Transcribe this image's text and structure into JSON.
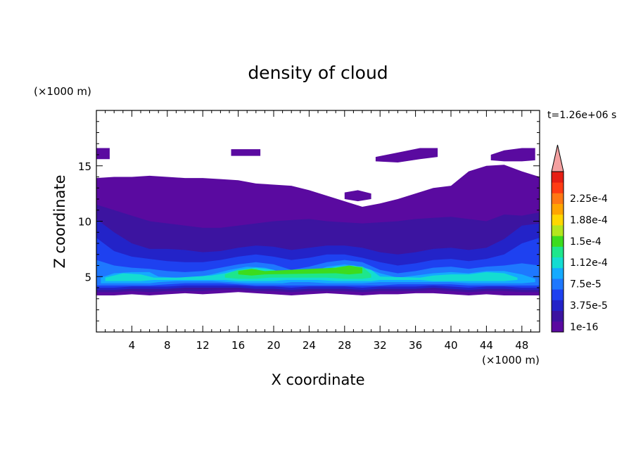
{
  "chart_data": {
    "type": "heatmap",
    "title": "density of cloud",
    "xlabel": "X coordinate",
    "ylabel": "Z coordinate",
    "x_unit": "(×1000 m)",
    "y_unit": "(×1000 m)",
    "time_label": "t=1.26e+06 s",
    "xlim": [
      0,
      50
    ],
    "ylim": [
      0,
      20
    ],
    "x_ticks": [
      4,
      8,
      12,
      16,
      20,
      24,
      28,
      32,
      36,
      40,
      44,
      48
    ],
    "y_ticks": [
      5,
      10,
      15
    ],
    "grid": false,
    "colorbar": {
      "levels": [
        1e-16,
        1.875e-05,
        3.75e-05,
        5.625e-05,
        7.5e-05,
        9.375e-05,
        0.0001125,
        0.00013125,
        0.00015,
        0.00016875,
        0.0001875,
        0.00020625,
        0.000225,
        0.00024375,
        0.0002625
      ],
      "labels": [
        "1e-16",
        "3.75e-5",
        "7.5e-5",
        "1.12e-4",
        "1.5e-4",
        "1.88e-4",
        "2.25e-4"
      ],
      "label_indices": [
        0,
        2,
        4,
        6,
        8,
        10,
        12
      ],
      "colors": [
        "#5a0aa0",
        "#3c14a0",
        "#2323c8",
        "#1e41f0",
        "#1e78ff",
        "#14aaff",
        "#14dcd2",
        "#1ee68c",
        "#3cdc1e",
        "#b4e61e",
        "#ffd700",
        "#ffa500",
        "#ff7814",
        "#ff3c14",
        "#e61e14"
      ],
      "extend_color": "#f4a0a0",
      "placement": "right"
    },
    "cloud_layers": [
      {
        "level": 0,
        "x": [
          0,
          2,
          4,
          6,
          8,
          10,
          12,
          14,
          16,
          18,
          20,
          22,
          24,
          26,
          28,
          30,
          32,
          34,
          36,
          38,
          40,
          42,
          44,
          46,
          48,
          50
        ],
        "bottom": [
          3.3,
          3.3,
          3.4,
          3.3,
          3.4,
          3.5,
          3.4,
          3.5,
          3.6,
          3.5,
          3.4,
          3.3,
          3.4,
          3.5,
          3.4,
          3.3,
          3.4,
          3.4,
          3.5,
          3.5,
          3.4,
          3.3,
          3.4,
          3.3,
          3.3,
          3.3
        ],
        "top": [
          13.9,
          14.0,
          14.0,
          14.1,
          14.0,
          13.9,
          13.9,
          13.8,
          13.7,
          13.4,
          13.3,
          13.2,
          12.8,
          12.3,
          11.8,
          11.3,
          11.6,
          12.0,
          12.5,
          13.0,
          13.2,
          14.5,
          15.0,
          15.1,
          14.5,
          14.0
        ]
      },
      {
        "level": 1,
        "x": [
          0,
          2,
          4,
          6,
          8,
          10,
          12,
          14,
          16,
          18,
          20,
          22,
          24,
          26,
          28,
          30,
          32,
          34,
          36,
          38,
          40,
          42,
          44,
          46,
          48,
          50
        ],
        "bottom": [
          3.6,
          3.6,
          3.7,
          3.6,
          3.7,
          3.7,
          3.7,
          3.8,
          3.8,
          3.7,
          3.7,
          3.6,
          3.7,
          3.7,
          3.7,
          3.6,
          3.7,
          3.7,
          3.7,
          3.8,
          3.7,
          3.6,
          3.7,
          3.7,
          3.6,
          3.6
        ],
        "top": [
          11.5,
          11.0,
          10.5,
          10.0,
          9.8,
          9.6,
          9.4,
          9.4,
          9.6,
          9.8,
          10.0,
          10.1,
          10.2,
          10.0,
          9.9,
          9.8,
          9.9,
          10.0,
          10.2,
          10.3,
          10.4,
          10.2,
          10.0,
          10.6,
          10.5,
          10.8
        ]
      },
      {
        "level": 2,
        "x": [
          0,
          2,
          4,
          6,
          8,
          10,
          12,
          14,
          16,
          18,
          20,
          22,
          24,
          26,
          28,
          30,
          32,
          34,
          36,
          38,
          40,
          42,
          44,
          46,
          48,
          50
        ],
        "bottom": [
          3.8,
          3.8,
          3.9,
          3.9,
          3.9,
          4.0,
          4.0,
          4.0,
          4.0,
          3.9,
          3.9,
          3.8,
          3.9,
          3.9,
          3.9,
          3.8,
          3.9,
          3.9,
          3.9,
          4.0,
          3.9,
          3.8,
          3.9,
          3.9,
          3.8,
          3.8
        ],
        "top": [
          10.2,
          9.0,
          8.0,
          7.5,
          7.5,
          7.4,
          7.2,
          7.3,
          7.6,
          7.8,
          7.7,
          7.4,
          7.6,
          7.8,
          7.8,
          7.6,
          7.2,
          7.0,
          7.2,
          7.5,
          7.6,
          7.4,
          7.6,
          8.4,
          9.6,
          9.8
        ]
      },
      {
        "level": 3,
        "x": [
          0,
          2,
          4,
          6,
          8,
          10,
          12,
          14,
          16,
          18,
          20,
          22,
          24,
          26,
          28,
          30,
          32,
          34,
          36,
          38,
          40,
          42,
          44,
          46,
          48,
          50
        ],
        "bottom": [
          4.0,
          4.0,
          4.1,
          4.1,
          4.1,
          4.2,
          4.2,
          4.2,
          4.2,
          4.1,
          4.1,
          4.0,
          4.1,
          4.1,
          4.1,
          4.0,
          4.1,
          4.1,
          4.1,
          4.2,
          4.1,
          4.0,
          4.1,
          4.1,
          4.0,
          4.0
        ],
        "top": [
          8.5,
          7.3,
          6.8,
          6.6,
          6.4,
          6.3,
          6.3,
          6.5,
          6.8,
          7.0,
          6.8,
          6.5,
          6.7,
          7.0,
          7.0,
          6.7,
          6.3,
          6.0,
          6.2,
          6.5,
          6.6,
          6.4,
          6.6,
          7.0,
          8.0,
          8.5
        ]
      },
      {
        "level": 4,
        "x": [
          0,
          2,
          4,
          6,
          8,
          10,
          12,
          14,
          16,
          18,
          20,
          22,
          24,
          26,
          28,
          30,
          32,
          34,
          36,
          38,
          40,
          42,
          44,
          46,
          48,
          50
        ],
        "bottom": [
          4.2,
          4.2,
          4.2,
          4.2,
          4.3,
          4.4,
          4.4,
          4.4,
          4.3,
          4.2,
          4.2,
          4.2,
          4.2,
          4.2,
          4.2,
          4.2,
          4.2,
          4.3,
          4.3,
          4.3,
          4.3,
          4.2,
          4.2,
          4.2,
          4.2,
          4.2
        ],
        "top": [
          6.5,
          6.0,
          5.8,
          5.7,
          5.5,
          5.4,
          5.5,
          5.8,
          6.1,
          6.3,
          6.1,
          5.6,
          5.9,
          6.3,
          6.5,
          6.3,
          5.6,
          5.3,
          5.5,
          5.8,
          5.9,
          5.7,
          5.9,
          6.0,
          6.2,
          6.0
        ]
      },
      {
        "level": 5,
        "x": [
          0.5,
          2,
          4,
          6,
          7,
          9,
          11,
          13,
          15,
          17,
          19,
          21,
          22,
          24,
          26,
          28,
          30,
          32,
          34,
          36,
          38,
          40,
          42,
          44,
          46,
          48,
          49.5
        ],
        "bottom": [
          4.4,
          4.4,
          4.4,
          4.4,
          4.5,
          4.6,
          4.6,
          4.6,
          4.5,
          4.4,
          4.4,
          4.4,
          4.5,
          4.5,
          4.4,
          4.4,
          4.4,
          4.5,
          4.5,
          4.5,
          4.5,
          4.5,
          4.4,
          4.4,
          4.4,
          4.4,
          4.5
        ],
        "top": [
          4.9,
          5.3,
          5.4,
          5.4,
          5.0,
          4.9,
          4.9,
          5.2,
          5.6,
          5.9,
          5.8,
          5.4,
          5.0,
          5.3,
          5.9,
          6.1,
          5.9,
          5.3,
          4.9,
          5.1,
          5.3,
          5.4,
          5.3,
          5.5,
          5.5,
          5.2,
          4.8
        ]
      },
      {
        "level": 6,
        "x": [
          1,
          3,
          5,
          6.5,
          9,
          11,
          13,
          14.5,
          16,
          18,
          20,
          21.5,
          25,
          27,
          29,
          31,
          32,
          36.5,
          38,
          40,
          42,
          44,
          46,
          47.5
        ],
        "bottom": [
          4.6,
          4.6,
          4.6,
          4.7,
          4.7,
          4.7,
          4.7,
          4.7,
          4.6,
          4.6,
          4.6,
          4.7,
          4.7,
          4.6,
          4.6,
          4.6,
          4.7,
          4.7,
          4.6,
          4.6,
          4.6,
          4.6,
          4.6,
          4.7
        ],
        "top": [
          4.9,
          5.3,
          5.2,
          4.9,
          4.9,
          5.0,
          5.1,
          5.3,
          5.6,
          5.8,
          5.6,
          5.1,
          5.4,
          5.9,
          6.0,
          5.6,
          5.0,
          4.9,
          5.1,
          5.2,
          5.2,
          5.4,
          5.3,
          4.9
        ]
      },
      {
        "level": 7,
        "x": [
          14.5,
          16,
          18,
          19.5,
          26,
          28,
          30,
          31
        ],
        "bottom": [
          4.9,
          4.8,
          4.8,
          4.9,
          4.9,
          4.8,
          4.8,
          4.9
        ],
        "top": [
          5.2,
          5.6,
          5.7,
          5.2,
          5.4,
          5.9,
          5.9,
          5.2
        ]
      },
      {
        "level": 8,
        "x": [
          16,
          17.5,
          19,
          27,
          28.5,
          30
        ],
        "bottom": [
          5.2,
          5.1,
          5.2,
          5.3,
          5.2,
          5.3
        ],
        "top": [
          5.5,
          5.7,
          5.5,
          5.8,
          6.0,
          5.8
        ]
      }
    ],
    "cloud_patches": [
      {
        "level": 0,
        "x": [
          0,
          1.5
        ],
        "bottom": [
          15.6,
          15.6
        ],
        "top": [
          16.6,
          16.6
        ]
      },
      {
        "level": 0,
        "x": [
          15.2,
          18.5
        ],
        "bottom": [
          15.9,
          15.9
        ],
        "top": [
          16.5,
          16.5
        ]
      },
      {
        "level": 0,
        "x": [
          31.5,
          34,
          36.5,
          38.5
        ],
        "bottom": [
          15.4,
          15.3,
          15.6,
          15.8
        ],
        "top": [
          15.8,
          16.2,
          16.6,
          16.6
        ]
      },
      {
        "level": 0,
        "x": [
          44.5,
          46,
          48,
          49.5
        ],
        "bottom": [
          15.5,
          15.4,
          15.4,
          15.5
        ],
        "top": [
          16.0,
          16.4,
          16.6,
          16.6
        ]
      },
      {
        "level": 0,
        "x": [
          28,
          29.5,
          31
        ],
        "bottom": [
          12.0,
          11.8,
          12.0
        ],
        "top": [
          12.6,
          12.8,
          12.5
        ]
      }
    ]
  }
}
